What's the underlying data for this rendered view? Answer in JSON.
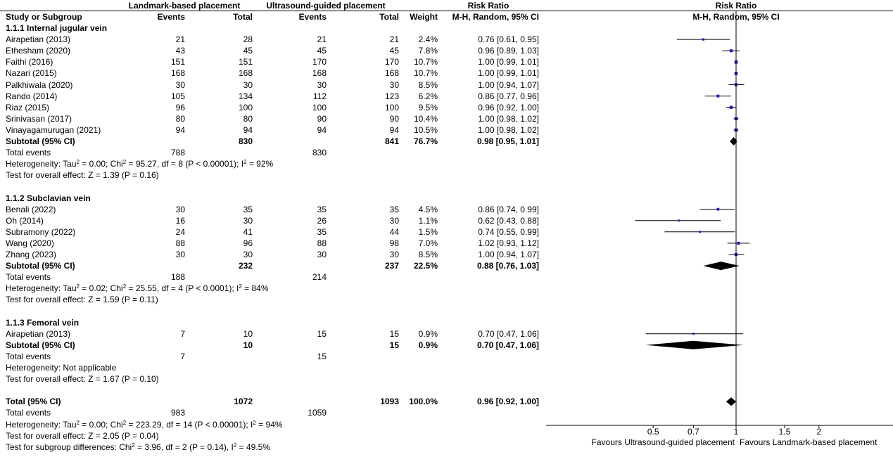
{
  "headers": {
    "group1": "Landmark-based placement",
    "group2": "Ultrasound-guided placement",
    "rr_table_title": "Risk Ratio",
    "rr_plot_title": "Risk Ratio",
    "study": "Study or Subgroup",
    "events1": "Events",
    "total1": "Total",
    "events2": "Events",
    "total2": "Total",
    "weight": "Weight",
    "method_table": "M-H, Random, 95% CI",
    "method_plot": "M-H, Random, 95% CI"
  },
  "subgroups": [
    {
      "title": "1.1.1 Internal jugular vein",
      "studies": [
        {
          "name": "Airapetian (2013)",
          "e1": "21",
          "n1": "28",
          "e2": "21",
          "n2": "21",
          "weight": "2.4%",
          "ci_text": "0.76 [0.61, 0.95]",
          "rr": 0.76,
          "lo": 0.61,
          "hi": 0.95
        },
        {
          "name": "Ethesham (2020)",
          "e1": "43",
          "n1": "45",
          "e2": "45",
          "n2": "45",
          "weight": "7.8%",
          "ci_text": "0.96 [0.89, 1.03]",
          "rr": 0.96,
          "lo": 0.89,
          "hi": 1.03
        },
        {
          "name": "Faithi (2016)",
          "e1": "151",
          "n1": "151",
          "e2": "170",
          "n2": "170",
          "weight": "10.7%",
          "ci_text": "1.00 [0.99, 1.01]",
          "rr": 1.0,
          "lo": 0.99,
          "hi": 1.01
        },
        {
          "name": "Nazari (2015)",
          "e1": "168",
          "n1": "168",
          "e2": "168",
          "n2": "168",
          "weight": "10.7%",
          "ci_text": "1.00 [0.99, 1.01]",
          "rr": 1.0,
          "lo": 0.99,
          "hi": 1.01
        },
        {
          "name": "Palkhiwala (2020)",
          "e1": "30",
          "n1": "30",
          "e2": "30",
          "n2": "30",
          "weight": "8.5%",
          "ci_text": "1.00 [0.94, 1.07]",
          "rr": 1.0,
          "lo": 0.94,
          "hi": 1.07
        },
        {
          "name": "Rando (2014)",
          "e1": "105",
          "n1": "134",
          "e2": "112",
          "n2": "123",
          "weight": "6.2%",
          "ci_text": "0.86 [0.77, 0.96]",
          "rr": 0.86,
          "lo": 0.77,
          "hi": 0.96
        },
        {
          "name": "Riaz (2015)",
          "e1": "96",
          "n1": "100",
          "e2": "100",
          "n2": "100",
          "weight": "9.5%",
          "ci_text": "0.96 [0.92, 1.00]",
          "rr": 0.96,
          "lo": 0.92,
          "hi": 1.0
        },
        {
          "name": "Srinivasan (2017)",
          "e1": "80",
          "n1": "80",
          "e2": "90",
          "n2": "90",
          "weight": "10.4%",
          "ci_text": "1.00 [0.98, 1.02]",
          "rr": 1.0,
          "lo": 0.98,
          "hi": 1.02
        },
        {
          "name": "Vinayagamurugan (2021)",
          "e1": "94",
          "n1": "94",
          "e2": "94",
          "n2": "94",
          "weight": "10.5%",
          "ci_text": "1.00 [0.98, 1.02]",
          "rr": 1.0,
          "lo": 0.98,
          "hi": 1.02
        }
      ],
      "subtotal": {
        "label": "Subtotal (95% CI)",
        "n1": "830",
        "n2": "841",
        "weight": "76.7%",
        "ci_text": "0.98 [0.95, 1.01]",
        "rr": 0.98,
        "lo": 0.95,
        "hi": 1.01
      },
      "total_events": {
        "label": "Total events",
        "e1": "788",
        "e2": "830"
      },
      "heterogeneity": {
        "prefix": "Heterogeneity: Tau",
        "mid": " = 0.00; Chi",
        "mid2": " = 95.27, df = 8 (P < 0.00001); I",
        "end": " = 92%"
      },
      "overall": "Test for overall effect: Z = 1.39 (P = 0.16)"
    },
    {
      "title": "1.1.2 Subclavian vein",
      "studies": [
        {
          "name": "Benali (2022)",
          "e1": "30",
          "n1": "35",
          "e2": "35",
          "n2": "35",
          "weight": "4.5%",
          "ci_text": "0.86 [0.74, 0.99]",
          "rr": 0.86,
          "lo": 0.74,
          "hi": 0.99
        },
        {
          "name": "Oh (2014)",
          "e1": "16",
          "n1": "30",
          "e2": "26",
          "n2": "30",
          "weight": "1.1%",
          "ci_text": "0.62 [0.43, 0.88]",
          "rr": 0.62,
          "lo": 0.43,
          "hi": 0.88
        },
        {
          "name": "Subramony (2022)",
          "e1": "24",
          "n1": "41",
          "e2": "35",
          "n2": "44",
          "weight": "1.5%",
          "ci_text": "0.74 [0.55, 0.99]",
          "rr": 0.74,
          "lo": 0.55,
          "hi": 0.99
        },
        {
          "name": "Wang (2020)",
          "e1": "88",
          "n1": "96",
          "e2": "88",
          "n2": "98",
          "weight": "7.0%",
          "ci_text": "1.02 [0.93, 1.12]",
          "rr": 1.02,
          "lo": 0.93,
          "hi": 1.12
        },
        {
          "name": "Zhang (2023)",
          "e1": "30",
          "n1": "30",
          "e2": "30",
          "n2": "30",
          "weight": "8.5%",
          "ci_text": "1.00 [0.94, 1.07]",
          "rr": 1.0,
          "lo": 0.94,
          "hi": 1.07
        }
      ],
      "subtotal": {
        "label": "Subtotal (95% CI)",
        "n1": "232",
        "n2": "237",
        "weight": "22.5%",
        "ci_text": "0.88 [0.76, 1.03]",
        "rr": 0.88,
        "lo": 0.76,
        "hi": 1.03
      },
      "total_events": {
        "label": "Total events",
        "e1": "188",
        "e2": "214"
      },
      "heterogeneity": {
        "prefix": "Heterogeneity: Tau",
        "mid": " = 0.02; Chi",
        "mid2": " = 25.55, df = 4 (P < 0.0001); I",
        "end": " = 84%"
      },
      "overall": "Test for overall effect: Z = 1.59 (P = 0.11)"
    },
    {
      "title": "1.1.3 Femoral vein",
      "studies": [
        {
          "name": "Airapetian (2013)",
          "e1": "7",
          "n1": "10",
          "e2": "15",
          "n2": "15",
          "weight": "0.9%",
          "ci_text": "0.70 [0.47, 1.06]",
          "rr": 0.7,
          "lo": 0.47,
          "hi": 1.06
        }
      ],
      "subtotal": {
        "label": "Subtotal (95% CI)",
        "n1": "10",
        "n2": "15",
        "weight": "0.9%",
        "ci_text": "0.70 [0.47, 1.06]",
        "rr": 0.7,
        "lo": 0.47,
        "hi": 1.06
      },
      "total_events": {
        "label": "Total events",
        "e1": "7",
        "e2": "15"
      },
      "heterogeneity_text": "Heterogeneity: Not applicable",
      "overall": "Test for overall effect: Z = 1.67 (P = 0.10)"
    }
  ],
  "total": {
    "label": "Total (95% CI)",
    "n1": "1072",
    "n2": "1093",
    "weight": "100.0%",
    "ci_text": "0.96 [0.92, 1.00]",
    "rr": 0.96,
    "lo": 0.92,
    "hi": 1.0,
    "events_label": "Total events",
    "e1": "983",
    "e2": "1059",
    "heterogeneity": {
      "prefix": "Heterogeneity: Tau",
      "mid": " = 0.00; Chi",
      "mid2": " = 223.29, df = 14 (P < 0.00001); I",
      "end": " = 94%"
    },
    "overall": "Test for overall effect: Z = 2.05 (P = 0.04)",
    "subgroup_diff": {
      "prefix": "Test for subgroup differences: Chi",
      "mid": " = 3.96, df = 2 (P = 0.14), I",
      "end": " = 49.5%"
    }
  },
  "superscript": "2",
  "chart_data": {
    "type": "forest",
    "title": "",
    "xlabel": "",
    "ylabel": "",
    "scale": "log",
    "xlim": [
      0.4,
      2.7
    ],
    "xticks": [
      0.5,
      0.7,
      1,
      1.5,
      2
    ],
    "xtick_labels": [
      "0.5",
      "0.7",
      "1",
      "1.5",
      "2"
    ],
    "favours_left": "Favours Ultrasound-guided placement",
    "favours_right": "Favours Landmark-based placement",
    "square_color": "#1f1fbf",
    "diamond_color": "#000000"
  }
}
